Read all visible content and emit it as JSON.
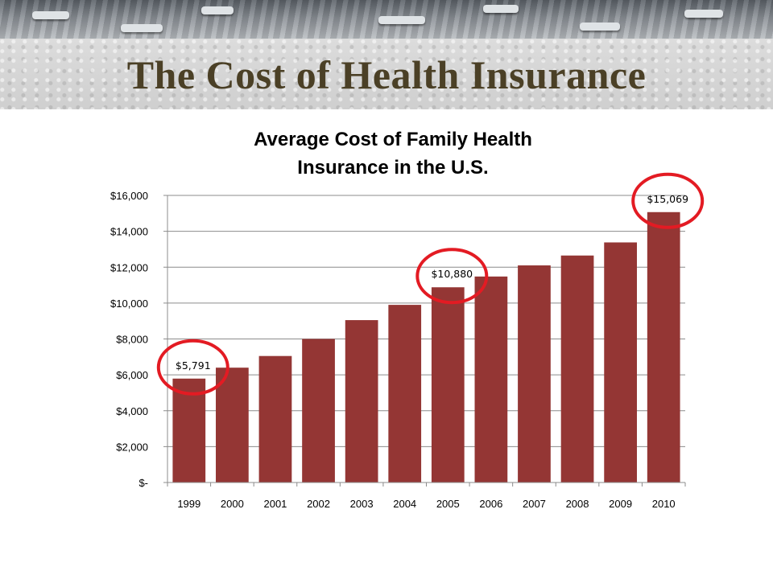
{
  "slide": {
    "title": "The Cost of Health Insurance"
  },
  "chart_data": {
    "type": "bar",
    "title_lines": [
      "Average Cost of Family Health",
      "Insurance in the U.S."
    ],
    "categories": [
      "1999",
      "2000",
      "2001",
      "2002",
      "2003",
      "2004",
      "2005",
      "2006",
      "2007",
      "2008",
      "2009",
      "2010"
    ],
    "values": [
      5791,
      6400,
      7050,
      8000,
      9050,
      9900,
      10880,
      11480,
      12100,
      12650,
      13380,
      15069
    ],
    "ylim": [
      0,
      16000
    ],
    "yticks": [
      0,
      2000,
      4000,
      6000,
      8000,
      10000,
      12000,
      14000,
      16000
    ],
    "ytick_labels": [
      "$-",
      "$2,000",
      "$4,000",
      "$6,000",
      "$8,000",
      "$10,000",
      "$12,000",
      "$14,000",
      "$16,000"
    ],
    "grid": true,
    "legend": "none",
    "data_labels": [
      {
        "category": "1999",
        "text": "$5,791"
      },
      {
        "category": "2005",
        "text": "$10,880"
      },
      {
        "category": "2010",
        "text": "$15,069"
      }
    ],
    "highlight_circles": [
      "1999",
      "2005",
      "2010"
    ],
    "bar_color": "#943634",
    "circle_color": "#e31b23"
  }
}
